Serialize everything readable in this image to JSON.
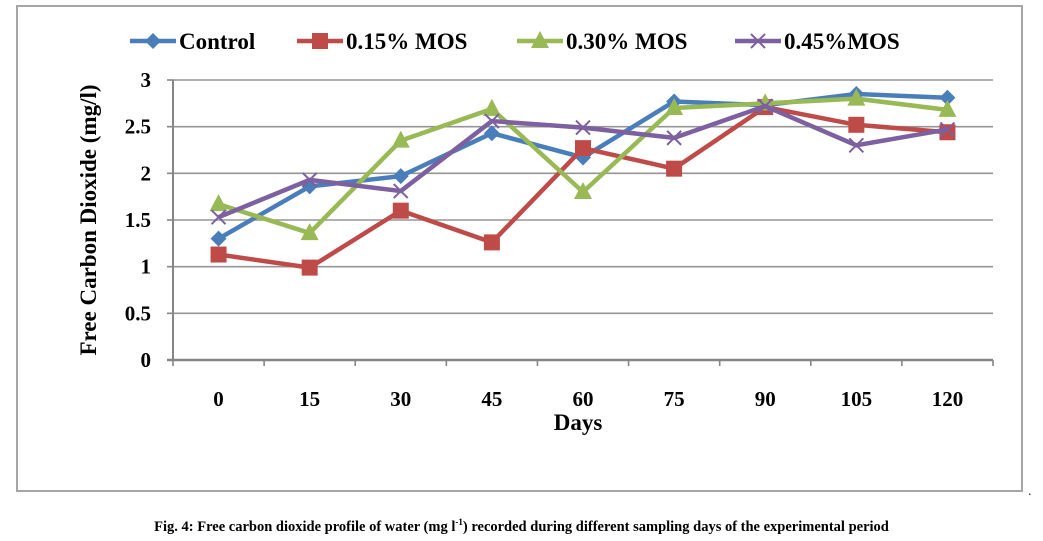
{
  "chart_data": {
    "type": "line",
    "title": "",
    "xlabel": "Days",
    "ylabel": "Free Carbon Dioxide (mg/l)",
    "categories": [
      "0",
      "15",
      "30",
      "45",
      "60",
      "75",
      "90",
      "105",
      "120"
    ],
    "ylim": [
      0,
      3
    ],
    "yticks": [
      "0",
      "0.5",
      "1",
      "1.5",
      "2",
      "2.5",
      "3"
    ],
    "ytick_values": [
      0,
      0.5,
      1,
      1.5,
      2,
      2.5,
      3
    ],
    "grid": true,
    "legend_position": "top",
    "series": [
      {
        "name": "Control",
        "color": "#4A7EBB",
        "marker": "diamond",
        "values": [
          1.3,
          1.86,
          1.97,
          2.43,
          2.17,
          2.77,
          2.73,
          2.85,
          2.81
        ]
      },
      {
        "name": "0.15% MOS",
        "color": "#BE4B48",
        "marker": "square",
        "values": [
          1.13,
          0.99,
          1.6,
          1.26,
          2.27,
          2.05,
          2.71,
          2.52,
          2.44
        ]
      },
      {
        "name": "0.30% MOS",
        "color": "#98B954",
        "marker": "triangle",
        "values": [
          1.67,
          1.36,
          2.35,
          2.69,
          1.8,
          2.7,
          2.75,
          2.8,
          2.68
        ]
      },
      {
        "name": "0.45%MOS",
        "color": "#7D60A0",
        "marker": "x",
        "values": [
          1.53,
          1.93,
          1.81,
          2.56,
          2.49,
          2.38,
          2.72,
          2.3,
          2.47
        ]
      }
    ]
  },
  "figure": {
    "caption_prefix": "Fig. 4: Free carbon dioxide profile of water (mg l",
    "caption_sup": "-1",
    "caption_suffix": ") recorded during different sampling days of the experimental period",
    "trailing_mark": "."
  }
}
